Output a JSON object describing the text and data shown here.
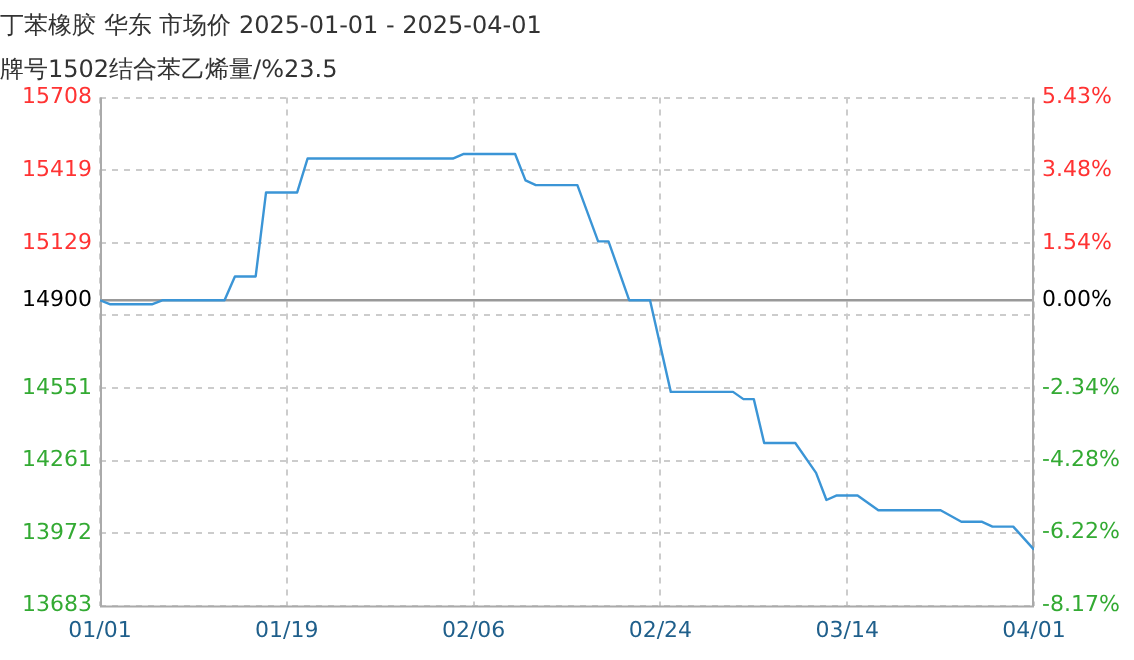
{
  "chart_data": {
    "type": "line",
    "title": "丁苯橡胶 华东 市场价 2025-01-01 - 2025-04-01",
    "subtitle": "牌号1502结合苯乙烯量/%23.5",
    "x": [
      "2025-01-01",
      "2025-01-02",
      "2025-01-06",
      "2025-01-07",
      "2025-01-13",
      "2025-01-14",
      "2025-01-16",
      "2025-01-17",
      "2025-01-20",
      "2025-01-21",
      "2025-02-04",
      "2025-02-05",
      "2025-02-10",
      "2025-02-11",
      "2025-02-12",
      "2025-02-16",
      "2025-02-18",
      "2025-02-19",
      "2025-02-21",
      "2025-02-23",
      "2025-02-25",
      "2025-03-03",
      "2025-03-04",
      "2025-03-05",
      "2025-03-06",
      "2025-03-09",
      "2025-03-11",
      "2025-03-12",
      "2025-03-13",
      "2025-03-15",
      "2025-03-17",
      "2025-03-23",
      "2025-03-25",
      "2025-03-27",
      "2025-03-28",
      "2025-03-30",
      "2025-04-01"
    ],
    "series": [
      {
        "color": "#3b95d6",
        "values": [
          14900,
          14884,
          14884,
          14900,
          14900,
          14995,
          14995,
          15330,
          15330,
          15465,
          15465,
          15483,
          15483,
          15378,
          15359,
          15359,
          15135,
          15135,
          14900,
          14900,
          14535,
          14535,
          14506,
          14506,
          14331,
          14331,
          14212,
          14104,
          14122,
          14122,
          14063,
          14063,
          14017,
          14017,
          13998,
          13998,
          13906
        ]
      }
    ],
    "xlim": [
      "2025-01-01",
      "2025-04-01"
    ],
    "xticks": [
      {
        "value": "2025-01-01",
        "label": "01/01"
      },
      {
        "value": "2025-01-19",
        "label": "01/19"
      },
      {
        "value": "2025-02-06",
        "label": "02/06"
      },
      {
        "value": "2025-02-24",
        "label": "02/24"
      },
      {
        "value": "2025-03-14",
        "label": "03/14"
      },
      {
        "value": "2025-04-01",
        "label": "04/01"
      }
    ],
    "ylim": [
      13683,
      15708
    ],
    "yticks": [
      13683,
      13972,
      14261,
      14551,
      {
        "value": 14840,
        "label": null
      },
      14900,
      15129,
      15419,
      15708
    ],
    "y2lim": [
      -8.17,
      5.43
    ],
    "y2ticks": [
      {
        "value": -8.17,
        "label": "-8.17%"
      },
      {
        "value": -6.22,
        "label": "-6.22%"
      },
      {
        "value": -4.28,
        "label": "-4.28%"
      },
      {
        "value": -2.34,
        "label": "-2.34%"
      },
      {
        "value": 0,
        "label": "0.00%"
      },
      {
        "value": 1.54,
        "label": "1.54%"
      },
      {
        "value": 3.48,
        "label": "3.48%"
      },
      {
        "value": 5.43,
        "label": "5.43%"
      }
    ],
    "ref_lines": [
      {
        "axis": "y",
        "value": 14900,
        "color": "#999999",
        "line_style": "solid"
      }
    ],
    "grid": true,
    "legend": false,
    "marker": "none",
    "line_style": "solid"
  }
}
